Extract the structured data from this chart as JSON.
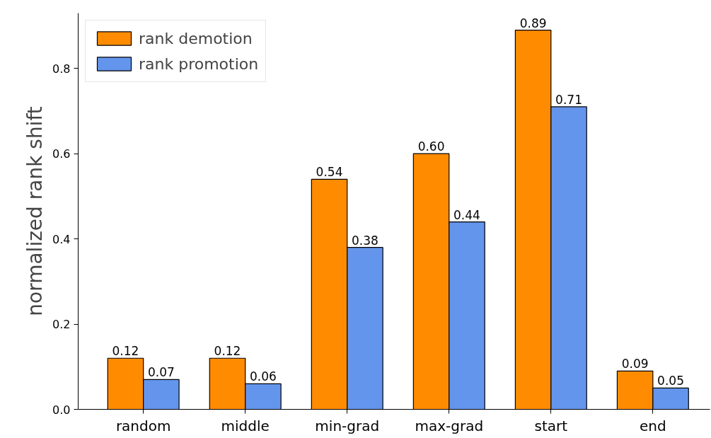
{
  "chart_data": {
    "type": "bar",
    "ylabel": "normalized rank shift",
    "categories": [
      "random",
      "middle",
      "min-grad",
      "max-grad",
      "start",
      "end"
    ],
    "series": [
      {
        "name": "rank demotion",
        "color": "#ff8c00",
        "values": [
          0.12,
          0.12,
          0.54,
          0.6,
          0.89,
          0.09
        ],
        "value_labels": [
          "0.12",
          "0.12",
          "0.54",
          "0.60",
          "0.89",
          "0.09"
        ]
      },
      {
        "name": "rank promotion",
        "color": "#6495ed",
        "values": [
          0.07,
          0.06,
          0.38,
          0.44,
          0.71,
          0.05
        ],
        "value_labels": [
          "0.07",
          "0.06",
          "0.38",
          "0.44",
          "0.71",
          "0.05"
        ]
      }
    ],
    "ylim": [
      0,
      0.93
    ],
    "yticks": [
      {
        "value": 0,
        "label": "0.0"
      },
      {
        "value": 0.2,
        "label": "0.2"
      },
      {
        "value": 0.4,
        "label": "0.4"
      },
      {
        "value": 0.6,
        "label": "0.6"
      },
      {
        "value": 0.8,
        "label": "0.8"
      }
    ],
    "legend": "top left",
    "grid": false
  }
}
